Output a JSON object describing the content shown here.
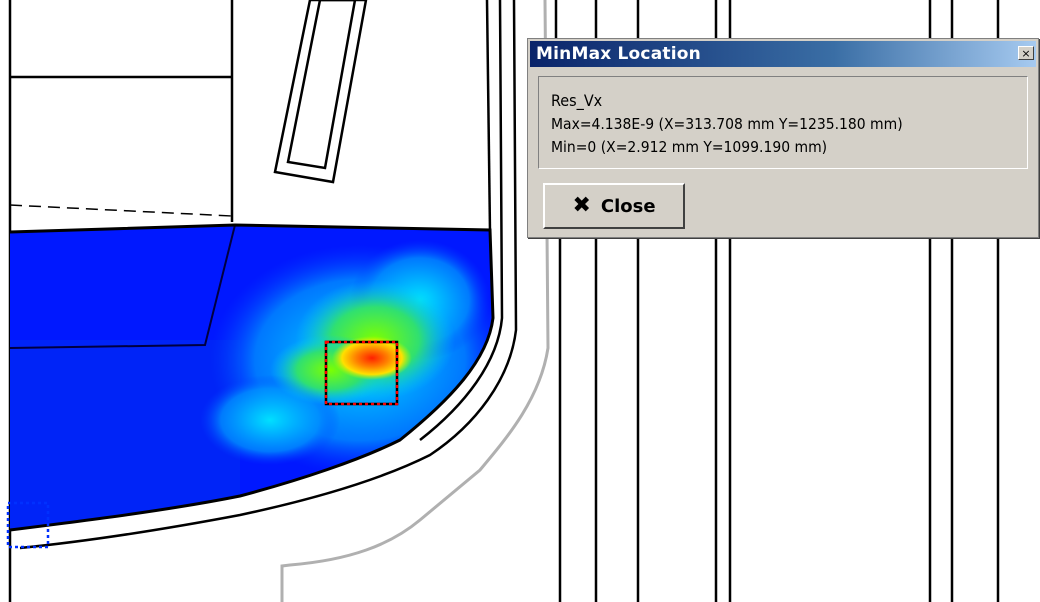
{
  "dialog": {
    "title": "MinMax Location",
    "title_close_glyph": "×",
    "lines": [
      "Res_Vx",
      "Max=4.138E-9 (X=313.708 mm Y=1235.180 mm)",
      "Min=0 (X=2.912 mm Y=1099.190 mm)"
    ],
    "close_button_label": "Close",
    "close_button_icon": "x-icon"
  },
  "colors": {
    "titlebar_start": "#0a246a",
    "titlebar_end": "#a6caf0",
    "dialog_face": "#d4d0c8",
    "field_low": "#0000ff",
    "field_high": "#ff0000"
  }
}
